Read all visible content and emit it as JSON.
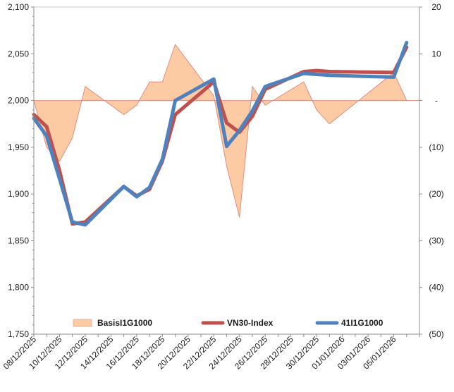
{
  "chart_data": {
    "type": "line",
    "title": "",
    "xlabel": "",
    "ylabel": "",
    "categories": [
      "08/12/2025",
      "09/12/2025",
      "10/12/2025",
      "11/12/2025",
      "12/12/2025",
      "15/12/2025",
      "16/12/2025",
      "17/12/2025",
      "18/12/2025",
      "19/12/2025",
      "22/12/2025",
      "23/12/2025",
      "24/12/2025",
      "25/12/2025",
      "26/12/2025",
      "29/12/2025",
      "30/12/2025",
      "31/12/2025",
      "05/01/2026",
      "06/01/2026"
    ],
    "x_dates": [
      "2025-12-08",
      "2025-12-09",
      "2025-12-10",
      "2025-12-11",
      "2025-12-12",
      "2025-12-15",
      "2025-12-16",
      "2025-12-17",
      "2025-12-18",
      "2025-12-19",
      "2025-12-22",
      "2025-12-23",
      "2025-12-24",
      "2025-12-25",
      "2025-12-26",
      "2025-12-29",
      "2025-12-30",
      "2025-12-31",
      "2026-01-05",
      "2026-01-06"
    ],
    "x_tick_labels": [
      "08/12/2025",
      "10/12/2025",
      "12/12/2025",
      "14/12/2025",
      "16/12/2025",
      "18/12/2025",
      "20/12/2025",
      "22/12/2025",
      "24/12/2025",
      "26/12/2025",
      "28/12/2025",
      "30/12/2025",
      "01/01/2026",
      "03/01/2026",
      "05/01/2026"
    ],
    "x_tick_dates": [
      "2025-12-08",
      "2025-12-10",
      "2025-12-12",
      "2025-12-14",
      "2025-12-16",
      "2025-12-18",
      "2025-12-20",
      "2025-12-22",
      "2025-12-24",
      "2025-12-26",
      "2025-12-28",
      "2025-12-30",
      "2026-01-01",
      "2026-01-03",
      "2026-01-05"
    ],
    "x_range": [
      "2025-12-08",
      "2026-01-07"
    ],
    "ylim": [
      1750,
      2100
    ],
    "y_ticks": [
      1750,
      1800,
      1850,
      1900,
      1950,
      2000,
      2050,
      2100
    ],
    "y_tick_labels": [
      "1,750",
      "1,800",
      "1,850",
      "1,900",
      "1,950",
      "2,000",
      "2,050",
      "2,100"
    ],
    "y2lim": [
      -50,
      20
    ],
    "y2_ticks": [
      20,
      10,
      0,
      -10,
      -20,
      -30,
      -40,
      -50
    ],
    "y2_tick_labels": [
      "20",
      "10",
      "-",
      "(10)",
      "(20)",
      "(30)",
      "(40)",
      "(50)"
    ],
    "grid": false,
    "legend_position": "bottom",
    "series": [
      {
        "name": "BasisI1G1000",
        "kind": "area",
        "axis": "right",
        "color": "#fccba4",
        "edge_color": "#e08d83",
        "values": [
          0,
          -10,
          -13,
          -8,
          3,
          -3,
          -1,
          4,
          4,
          12,
          1,
          -14,
          -25,
          3,
          -1,
          4,
          -2,
          -5,
          6,
          0
        ]
      },
      {
        "name": "VN30-Index",
        "kind": "line",
        "axis": "left",
        "color": "#c0504d",
        "values": [
          1985,
          1972,
          1925,
          1868,
          1870,
          1908,
          1898,
          1905,
          1935,
          1985,
          2020,
          1976,
          1966,
          1983,
          2012,
          2031,
          2032,
          2031,
          2030,
          2057
        ]
      },
      {
        "name": "41I1G1000",
        "kind": "line",
        "axis": "left",
        "color": "#4f81bd",
        "values": [
          1981,
          1962,
          1916,
          1870,
          1867,
          1908,
          1897,
          1907,
          1937,
          2000,
          2023,
          1951,
          1968,
          1989,
          2015,
          2029,
          2028,
          2027,
          2025,
          2062
        ]
      }
    ]
  }
}
